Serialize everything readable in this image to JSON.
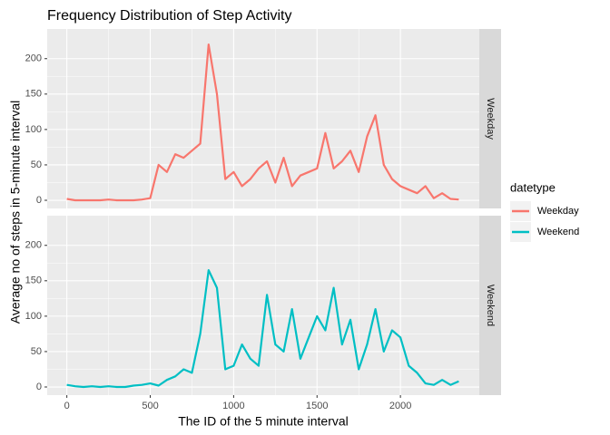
{
  "chart_data": {
    "type": "line",
    "title": "Frequency Distribution of Step Activity",
    "x_label": "The ID of the 5 minute interval",
    "y_label": "Average no of steps in 5-minute interval",
    "legend_title": "datetype",
    "legend_position": "right",
    "x": [
      0,
      50,
      100,
      150,
      200,
      250,
      300,
      350,
      400,
      450,
      500,
      550,
      600,
      650,
      700,
      750,
      800,
      850,
      900,
      950,
      1000,
      1050,
      1100,
      1150,
      1200,
      1250,
      1300,
      1350,
      1400,
      1450,
      1500,
      1550,
      1600,
      1650,
      1700,
      1750,
      1800,
      1850,
      1900,
      1950,
      2000,
      2050,
      2100,
      2150,
      2200,
      2250,
      2300,
      2350
    ],
    "series": [
      {
        "name": "Weekday",
        "color": "#F8766D",
        "values": [
          2,
          0,
          0,
          0,
          0,
          1,
          0,
          0,
          0,
          1,
          3,
          50,
          40,
          65,
          60,
          70,
          80,
          220,
          150,
          30,
          40,
          20,
          30,
          45,
          55,
          25,
          60,
          20,
          35,
          40,
          45,
          95,
          45,
          55,
          70,
          40,
          90,
          120,
          50,
          30,
          20,
          15,
          10,
          20,
          3,
          10,
          2,
          1
        ]
      },
      {
        "name": "Weekend",
        "color": "#00BFC4",
        "values": [
          3,
          1,
          0,
          1,
          0,
          1,
          0,
          0,
          2,
          3,
          5,
          2,
          10,
          15,
          25,
          20,
          75,
          165,
          140,
          25,
          30,
          60,
          40,
          30,
          130,
          60,
          50,
          110,
          40,
          70,
          100,
          80,
          140,
          60,
          95,
          25,
          60,
          110,
          50,
          80,
          70,
          30,
          20,
          5,
          3,
          10,
          3,
          8
        ]
      }
    ],
    "xlim": [
      -117.75,
      2472.75
    ],
    "ylim": [
      -11.5,
      241.9
    ],
    "xticks": [
      0,
      500,
      1000,
      1500,
      2000
    ],
    "yticks": [
      0,
      50,
      100,
      150,
      200
    ],
    "grid": true
  }
}
